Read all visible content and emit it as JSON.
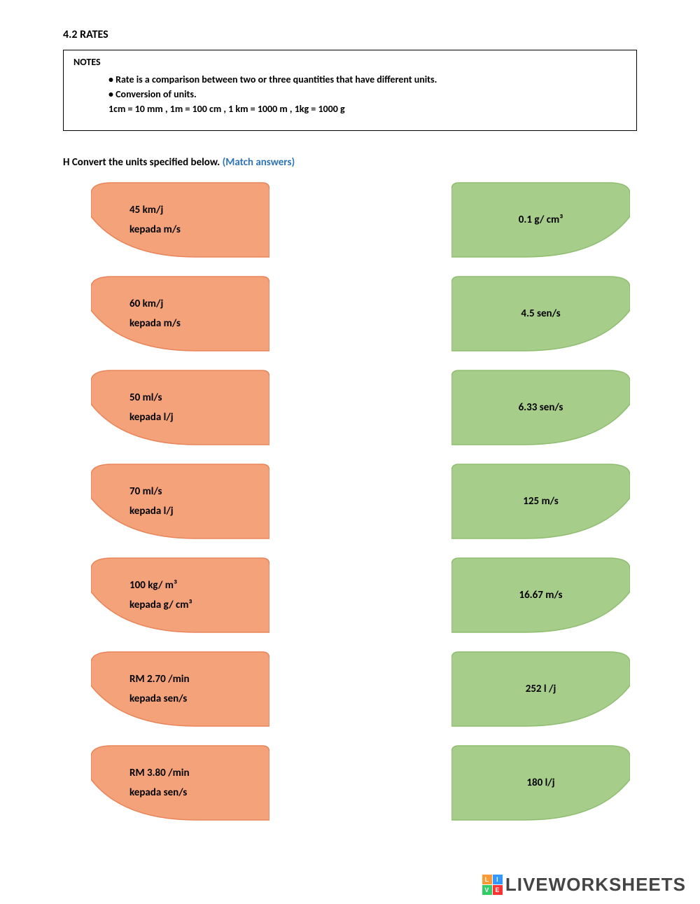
{
  "section_title": "4.2 RATES",
  "notes": {
    "heading": "NOTES",
    "lines": [
      "• Rate is a comparison between two or three quantities that have different units.",
      "• Conversion of units.",
      "1cm = 10 mm   , 1m = 100 cm  , 1 km = 1000 m  , 1kg = 1000 g"
    ]
  },
  "question": {
    "prefix": "H  Convert the units specified below. ",
    "hint": "(Match answers)"
  },
  "colors": {
    "left_fill": "#f4a27a",
    "left_stroke": "#e8855a",
    "right_fill": "#a7cd8a",
    "right_stroke": "#8fbd70",
    "hint": "#2e74b5"
  },
  "pairs": [
    {
      "left_line1": "45 km/j",
      "left_line2": "kepada m/s",
      "right": "0.1 g/ cm³"
    },
    {
      "left_line1": "60 km/j",
      "left_line2": "kepada m/s",
      "right": "4.5 sen/s"
    },
    {
      "left_line1": "50 ml/s",
      "left_line2": "kepada l/j",
      "right": "6.33 sen/s"
    },
    {
      "left_line1": "70 ml/s",
      "left_line2": "kepada l/j",
      "right": "125 m/s"
    },
    {
      "left_line1": "100 kg/ m³",
      "left_line2": "kepada g/ cm³",
      "right": "16.67 m/s"
    },
    {
      "left_line1": "RM 2.70 /min",
      "left_line2": "kepada sen/s",
      "right": "252 l /j"
    },
    {
      "left_line1": "RM 3.80 /min",
      "left_line2": "kepada sen/s",
      "right": "180 l/j"
    }
  ],
  "watermark": {
    "text": "LIVEWORKSHEETS",
    "badge": [
      "L",
      "I",
      "V",
      "E"
    ],
    "badge_colors": [
      "#ff9933",
      "#3399ff",
      "#33cc66",
      "#ff3333"
    ]
  }
}
